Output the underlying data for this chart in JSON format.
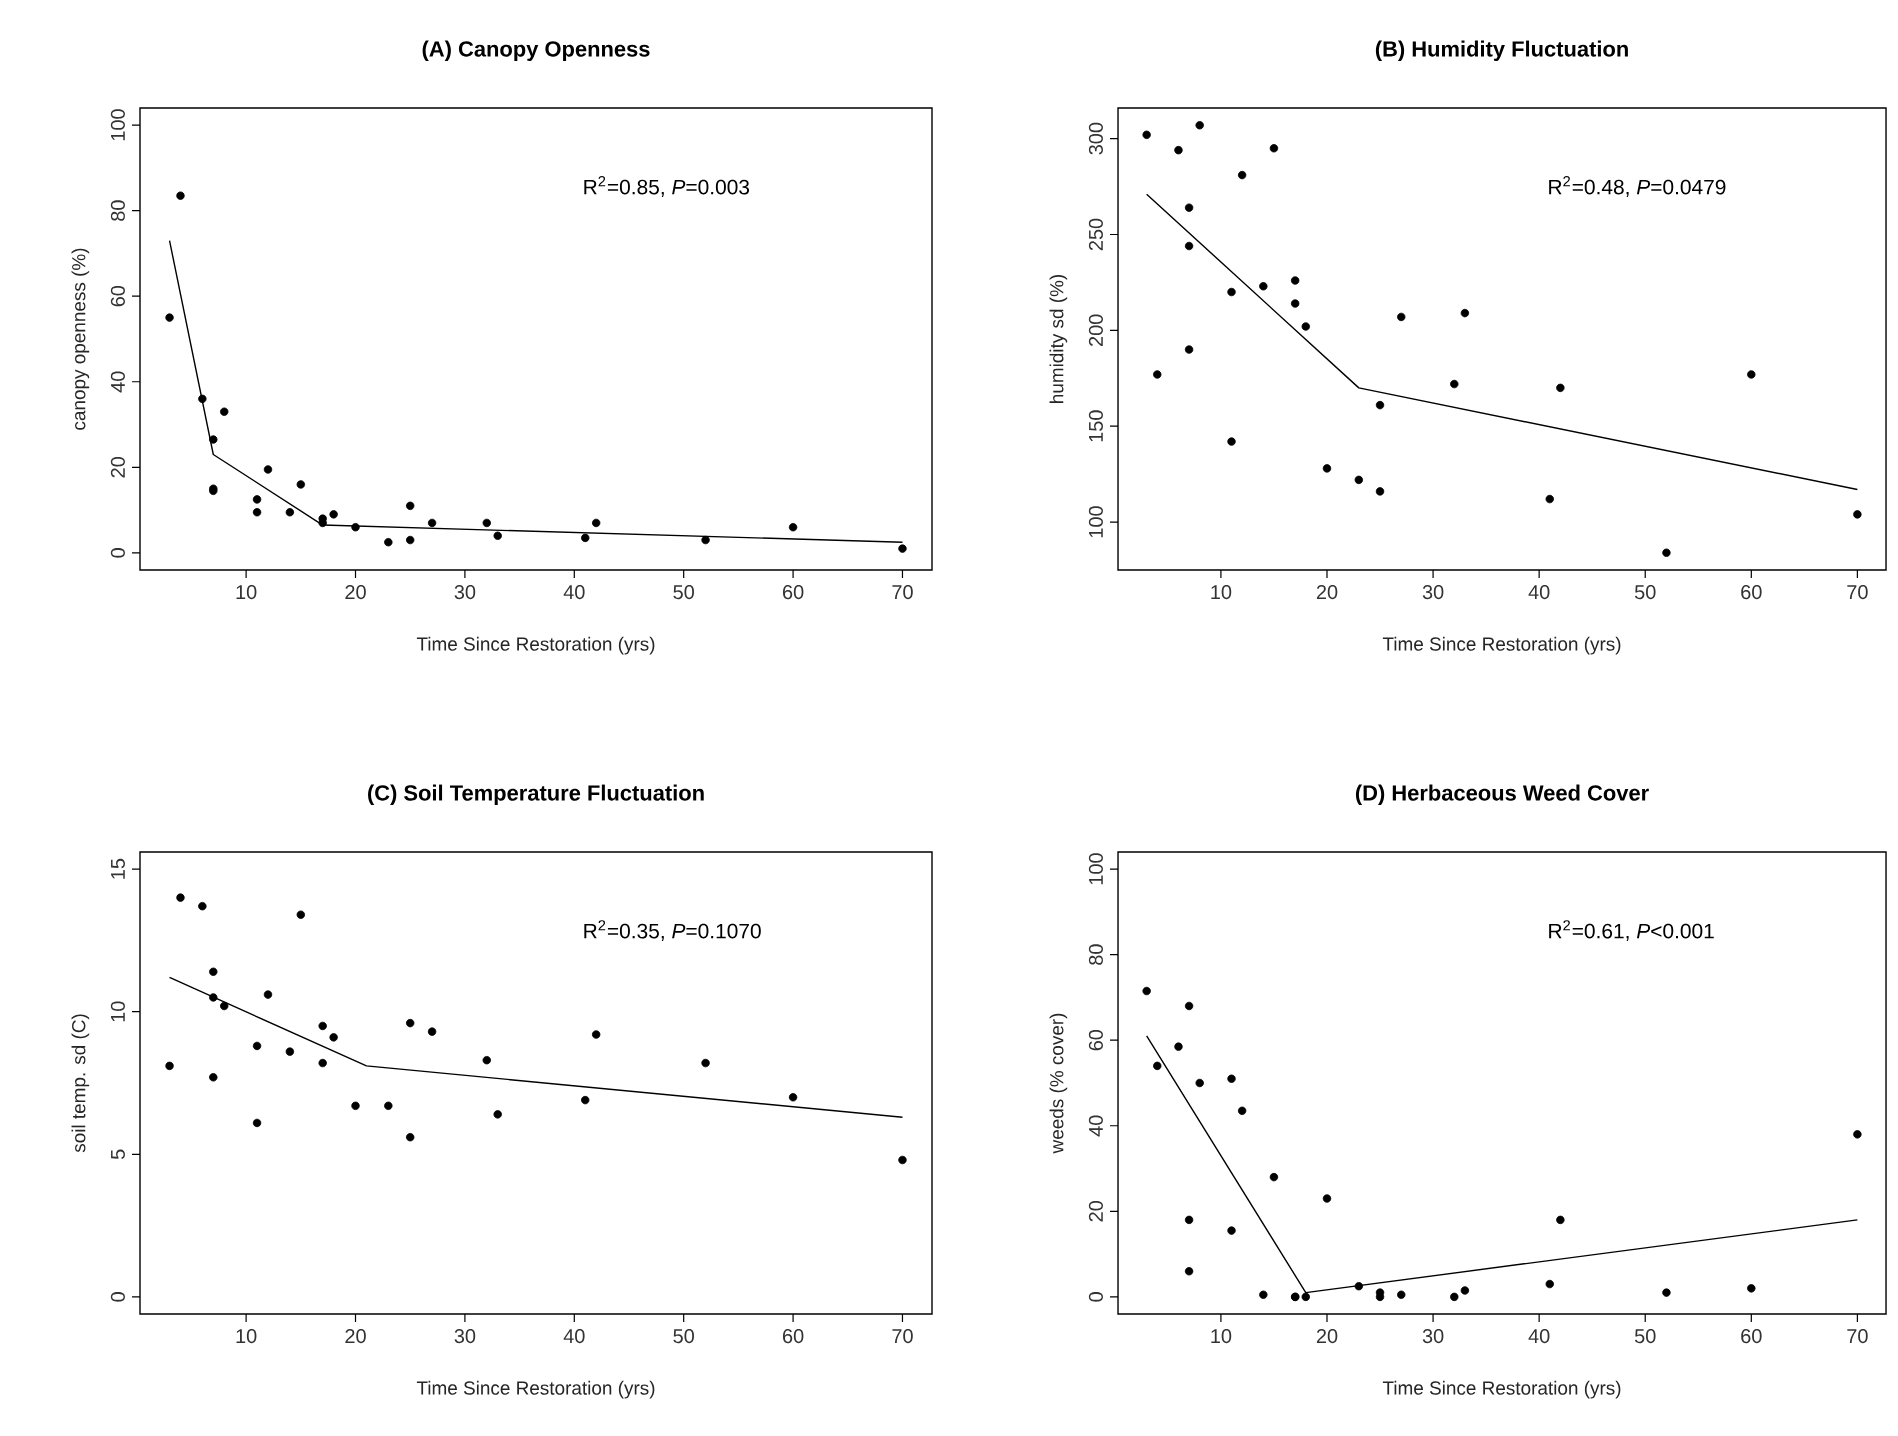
{
  "chart_data": [
    {
      "type": "scatter",
      "title": "(A) Canopy Openness",
      "xlabel": "Time Since Restoration (yrs)",
      "ylabel": "canopy openness (%)",
      "xlim": [
        0.3,
        72.7
      ],
      "ylim": [
        -4,
        104
      ],
      "xticks": [
        10,
        20,
        30,
        40,
        50,
        60,
        70
      ],
      "yticks": [
        0,
        20,
        40,
        60,
        80,
        100
      ],
      "annotations": [
        "R$^{2}$=0.85, *P*=0.003"
      ],
      "series": [
        {
          "marker": "circle",
          "color": "#000000",
          "x": [
            3,
            4,
            6,
            7,
            7,
            7,
            8,
            11,
            11,
            12,
            14,
            15,
            17,
            17,
            18,
            20,
            23,
            25,
            25,
            27,
            32,
            33,
            41,
            42,
            52,
            60,
            70
          ],
          "values": [
            55,
            83.5,
            36,
            26.5,
            15,
            14.5,
            33,
            12.5,
            9.5,
            19.5,
            9.5,
            16,
            8,
            7,
            9,
            6,
            2.5,
            11,
            3,
            7,
            7,
            4,
            3.5,
            7,
            3,
            6,
            1
          ]
        },
        {
          "type": "line",
          "marker": "none",
          "color": "#000000",
          "x": [
            3,
            7,
            17,
            70
          ],
          "values": [
            73,
            23,
            6.5,
            2.5
          ]
        }
      ]
    },
    {
      "type": "scatter",
      "title": "(B) Humidity Fluctuation",
      "xlabel": "Time Since Restoration (yrs)",
      "ylabel": "humidity sd (%)",
      "xlim": [
        0.3,
        72.7
      ],
      "ylim": [
        75,
        316
      ],
      "xticks": [
        10,
        20,
        30,
        40,
        50,
        60,
        70
      ],
      "yticks": [
        100,
        150,
        200,
        250,
        300
      ],
      "annotations": [
        "R$^{2}$=0.48, *P*=0.0479"
      ],
      "series": [
        {
          "marker": "circle",
          "color": "#000000",
          "x": [
            3,
            4,
            6,
            7,
            7,
            7,
            8,
            11,
            11,
            12,
            14,
            15,
            17,
            17,
            18,
            20,
            23,
            25,
            25,
            27,
            32,
            33,
            41,
            42,
            52,
            60,
            70
          ],
          "values": [
            302,
            177,
            294,
            264,
            244,
            190,
            307,
            220,
            142,
            281,
            223,
            295,
            226,
            214,
            202,
            128,
            122,
            161,
            116,
            207,
            172,
            209,
            112,
            170,
            84,
            177,
            104
          ]
        },
        {
          "type": "line",
          "marker": "none",
          "color": "#000000",
          "x": [
            3,
            23,
            70
          ],
          "values": [
            271,
            170,
            117
          ]
        }
      ]
    },
    {
      "type": "scatter",
      "title": "(C) Soil Temperature Fluctuation",
      "xlabel": "Time Since Restoration (yrs)",
      "ylabel": "soil temp. sd (C)",
      "xlim": [
        0.3,
        72.7
      ],
      "ylim": [
        -0.6,
        15.6
      ],
      "xticks": [
        10,
        20,
        30,
        40,
        50,
        60,
        70
      ],
      "yticks": [
        0,
        5,
        10,
        15
      ],
      "annotations": [
        "R$^{2}$=0.35, *P*=0.1070"
      ],
      "series": [
        {
          "marker": "circle",
          "color": "#000000",
          "x": [
            3,
            4,
            6,
            7,
            7,
            7,
            8,
            11,
            11,
            12,
            14,
            15,
            17,
            17,
            18,
            20,
            23,
            25,
            25,
            27,
            32,
            33,
            41,
            42,
            52,
            60,
            70
          ],
          "values": [
            8.1,
            14,
            13.7,
            11.4,
            10.5,
            7.7,
            10.2,
            8.8,
            6.1,
            10.6,
            8.6,
            13.4,
            9.5,
            8.2,
            9.1,
            6.7,
            6.7,
            9.6,
            5.6,
            9.3,
            8.3,
            6.4,
            6.9,
            9.2,
            8.2,
            7.0,
            4.8
          ]
        },
        {
          "type": "line",
          "marker": "none",
          "color": "#000000",
          "x": [
            3,
            21,
            70
          ],
          "values": [
            11.2,
            8.1,
            6.3
          ]
        }
      ]
    },
    {
      "type": "scatter",
      "title": "(D) Herbaceous Weed Cover",
      "xlabel": "Time Since Restoration (yrs)",
      "ylabel": "weeds (% cover)",
      "xlim": [
        0.3,
        72.7
      ],
      "ylim": [
        -4,
        104
      ],
      "xticks": [
        10,
        20,
        30,
        40,
        50,
        60,
        70
      ],
      "yticks": [
        0,
        20,
        40,
        60,
        80,
        100
      ],
      "annotations": [
        "R$^{2}$=0.61, *P*<0.001"
      ],
      "series": [
        {
          "marker": "circle",
          "color": "#000000",
          "x": [
            3,
            4,
            6,
            7,
            7,
            7,
            8,
            11,
            11,
            12,
            14,
            15,
            17,
            17,
            18,
            20,
            23,
            25,
            25,
            27,
            32,
            33,
            41,
            42,
            52,
            60,
            70
          ],
          "values": [
            71.5,
            54,
            58.5,
            68,
            18,
            6,
            50,
            51,
            15.5,
            43.5,
            0.5,
            28,
            0,
            0,
            0,
            23,
            2.5,
            1,
            0,
            0.5,
            0,
            1.5,
            3,
            18,
            1,
            2,
            38
          ]
        },
        {
          "type": "line",
          "marker": "none",
          "color": "#000000",
          "x": [
            3,
            18,
            70
          ],
          "values": [
            61,
            1,
            18
          ]
        }
      ]
    }
  ]
}
